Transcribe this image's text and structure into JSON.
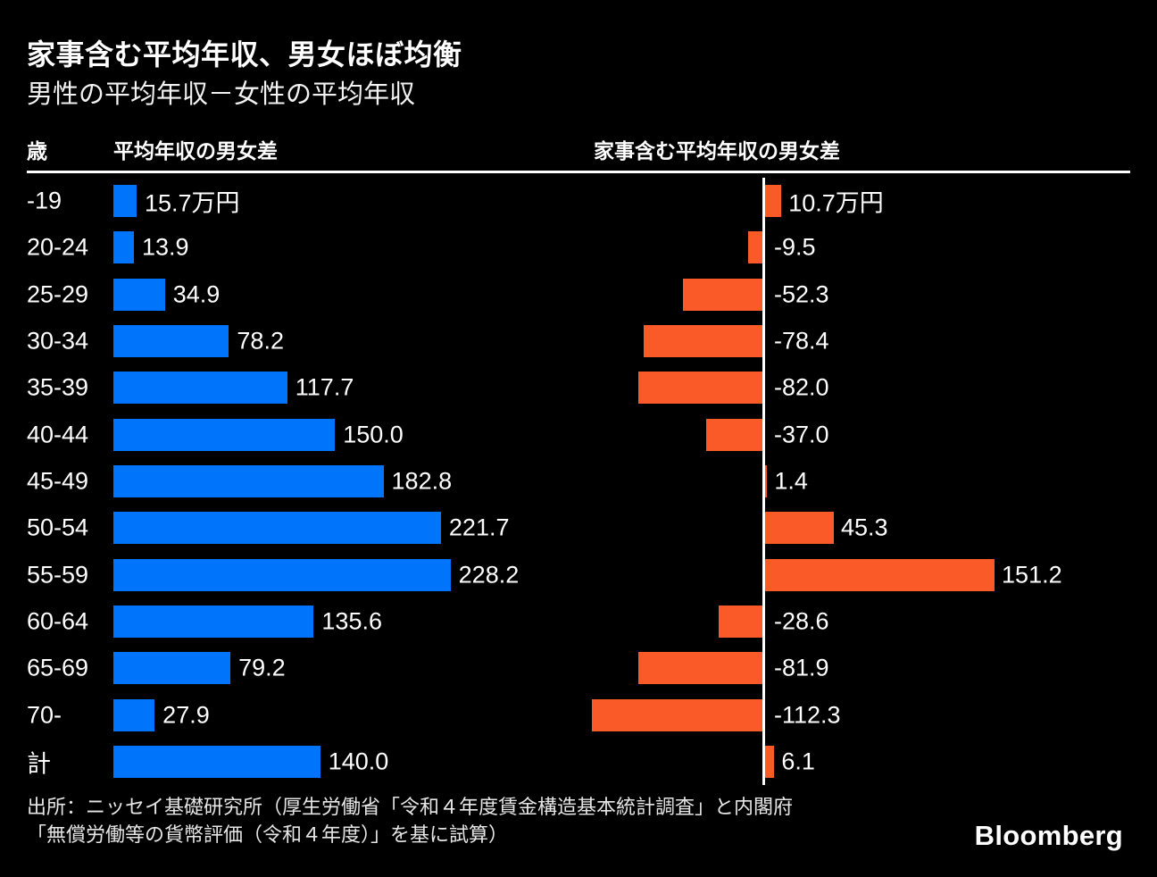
{
  "title": "家事含む平均年収、男女ほぼ均衡",
  "subtitle": "男性の平均年収－女性の平均年収",
  "columns": {
    "age": "歳",
    "left": "平均年収の男女差",
    "right": "家事含む平均年収の男女差"
  },
  "source": {
    "line1": "出所：ニッセイ基礎研究所（厚生労働省「令和４年度賃金構造基本統計調査」と内閣府",
    "line2": "「無償労働等の貨幣評価（令和４年度）」を基に試算）"
  },
  "logo": "Bloomberg",
  "colors": {
    "background": "#000000",
    "text": "#ffffff",
    "bar_blue": "#0074fa",
    "bar_orange": "#fa5a28",
    "axis": "#ffffff"
  },
  "chart_data": {
    "type": "bar",
    "orientation": "horizontal-diverging",
    "unit": "万円",
    "title": "家事含む平均年収、男女ほぼ均衡",
    "ylabel": "歳",
    "categories": [
      "-19",
      "20-24",
      "25-29",
      "30-34",
      "35-39",
      "40-44",
      "45-49",
      "50-54",
      "55-59",
      "60-64",
      "65-69",
      "70-",
      "計"
    ],
    "series": [
      {
        "name": "平均年収の男女差",
        "color": "#0074fa",
        "values": [
          15.7,
          13.9,
          34.9,
          78.2,
          117.7,
          150.0,
          182.8,
          221.7,
          228.2,
          135.6,
          79.2,
          27.9,
          140.0
        ],
        "labels": [
          "15.7万円",
          "13.9",
          "34.9",
          "78.2",
          "117.7",
          "150.0",
          "182.8",
          "221.7",
          "228.2",
          "135.6",
          "79.2",
          "27.9",
          "140.0"
        ]
      },
      {
        "name": "家事含む平均年収の男女差",
        "color": "#fa5a28",
        "values": [
          10.7,
          -9.5,
          -52.3,
          -78.4,
          -82.0,
          -37.0,
          1.4,
          45.3,
          151.2,
          -28.6,
          -81.9,
          -112.3,
          6.1
        ],
        "labels": [
          "10.7万円",
          "-9.5",
          "-52.3",
          "-78.4",
          "-82.0",
          "-37.0",
          "1.4",
          "45.3",
          "151.2",
          "-28.6",
          "-81.9",
          "-112.3",
          "6.1"
        ]
      }
    ],
    "layout_hints": {
      "left_axis_at_zero": true,
      "right_axis_line_visible": true,
      "value_labels": "outside-end; negative labels right of axis"
    }
  }
}
